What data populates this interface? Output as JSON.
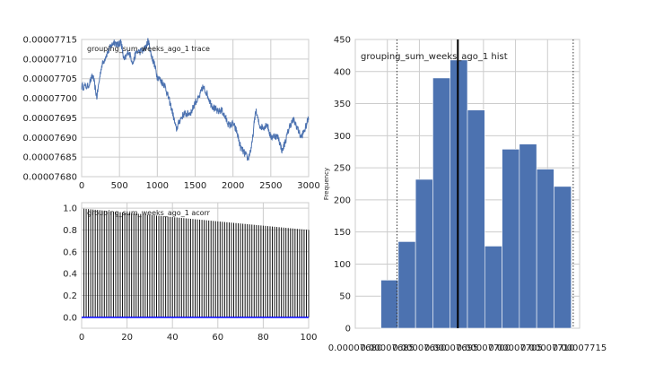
{
  "chart_data": [
    {
      "type": "line",
      "annotation": "grouping_sum_weeks_ago_1 trace",
      "xlim": [
        0,
        3000
      ],
      "ylim": [
        7.68e-05,
        7.715e-05
      ],
      "x_ticks": [
        0,
        500,
        1000,
        1500,
        2000,
        2500,
        3000
      ],
      "x_tick_labels": [
        "0",
        "500",
        "1000",
        "1500",
        "2000",
        "2500",
        "3000"
      ],
      "y_ticks": [
        7.68e-05,
        7.685e-05,
        7.69e-05,
        7.695e-05,
        7.7e-05,
        7.705e-05,
        7.71e-05,
        7.715e-05
      ],
      "y_tick_labels": [
        "0.00007680",
        "0.00007685",
        "0.00007690",
        "0.00007695",
        "0.00007700",
        "0.00007705",
        "0.00007710",
        "0.00007715"
      ],
      "grid": true,
      "color": "#4c72b0",
      "keypoints": [
        [
          0,
          7.703e-05
        ],
        [
          80,
          7.703e-05
        ],
        [
          150,
          7.7058e-05
        ],
        [
          200,
          7.7002e-05
        ],
        [
          260,
          7.708e-05
        ],
        [
          320,
          7.7108e-05
        ],
        [
          380,
          7.713e-05
        ],
        [
          430,
          7.7145e-05
        ],
        [
          480,
          7.7135e-05
        ],
        [
          520,
          7.7145e-05
        ],
        [
          560,
          7.7095e-05
        ],
        [
          620,
          7.712e-05
        ],
        [
          680,
          7.709e-05
        ],
        [
          720,
          7.7118e-05
        ],
        [
          800,
          7.712e-05
        ],
        [
          850,
          7.713e-05
        ],
        [
          880,
          7.7148e-05
        ],
        [
          920,
          7.711e-05
        ],
        [
          960,
          7.7088e-05
        ],
        [
          1000,
          7.7055e-05
        ],
        [
          1050,
          7.7045e-05
        ],
        [
          1100,
          7.7032e-05
        ],
        [
          1150,
          7.7e-05
        ],
        [
          1200,
          7.6965e-05
        ],
        [
          1250,
          7.692e-05
        ],
        [
          1300,
          7.6945e-05
        ],
        [
          1350,
          7.696e-05
        ],
        [
          1400,
          7.696e-05
        ],
        [
          1450,
          7.6965e-05
        ],
        [
          1500,
          7.699e-05
        ],
        [
          1550,
          7.7e-05
        ],
        [
          1600,
          7.7028e-05
        ],
        [
          1650,
          7.7015e-05
        ],
        [
          1700,
          7.699e-05
        ],
        [
          1750,
          7.6975e-05
        ],
        [
          1800,
          7.6965e-05
        ],
        [
          1850,
          7.697e-05
        ],
        [
          1900,
          7.695e-05
        ],
        [
          1950,
          7.693e-05
        ],
        [
          2000,
          7.6935e-05
        ],
        [
          2050,
          7.6915e-05
        ],
        [
          2100,
          7.6875e-05
        ],
        [
          2150,
          7.686e-05
        ],
        [
          2200,
          7.6845e-05
        ],
        [
          2250,
          7.688e-05
        ],
        [
          2300,
          7.697e-05
        ],
        [
          2350,
          7.693e-05
        ],
        [
          2400,
          7.6925e-05
        ],
        [
          2450,
          7.6935e-05
        ],
        [
          2500,
          7.69e-05
        ],
        [
          2550,
          7.6905e-05
        ],
        [
          2600,
          7.69e-05
        ],
        [
          2650,
          7.6865e-05
        ],
        [
          2700,
          7.6895e-05
        ],
        [
          2750,
          7.693e-05
        ],
        [
          2800,
          7.6945e-05
        ],
        [
          2850,
          7.6925e-05
        ],
        [
          2900,
          7.69e-05
        ],
        [
          2950,
          7.692e-05
        ],
        [
          3000,
          7.695e-05
        ]
      ]
    },
    {
      "type": "bar",
      "annotation": "grouping_sum_weeks_ago_1 acorr",
      "xlim": [
        0,
        100
      ],
      "ylim": [
        -0.1,
        1.05
      ],
      "x_ticks": [
        0,
        20,
        40,
        60,
        80,
        100
      ],
      "x_tick_labels": [
        "0",
        "20",
        "40",
        "60",
        "80",
        "100"
      ],
      "y_ticks": [
        0,
        0.2,
        0.4,
        0.6,
        0.8,
        1
      ],
      "y_tick_labels": [
        "0.0",
        "0.2",
        "0.4",
        "0.6",
        "0.8",
        "1.0"
      ],
      "grid": true,
      "lag_range": [
        1,
        100
      ],
      "acorr_start": 0.995,
      "acorr_end": 0.8,
      "baseline": 0,
      "baseline_color": "#0000ff"
    },
    {
      "type": "bar",
      "annotation": "grouping_sum_weeks_ago_1 hist",
      "ylabel": "Frequency",
      "xlim": [
        7.68e-05,
        7.715e-05
      ],
      "ylim": [
        0,
        450
      ],
      "x_ticks": [
        7.68e-05,
        7.685e-05,
        7.69e-05,
        7.695e-05,
        7.7e-05,
        7.705e-05,
        7.71e-05,
        7.715e-05
      ],
      "x_tick_labels": [
        "0.00007680",
        "0.00007685",
        "0.00007690",
        "0.00007695",
        "0.00007700",
        "0.00007705",
        "0.00007710",
        "0.00007715"
      ],
      "y_ticks": [
        0,
        50,
        100,
        150,
        200,
        250,
        300,
        350,
        400,
        450
      ],
      "y_tick_labels": [
        "0",
        "50",
        "100",
        "150",
        "200",
        "250",
        "300",
        "350",
        "400",
        "450"
      ],
      "grid": true,
      "color": "#4c72b0",
      "bin_edges": [
        7.684e-05,
        7.6867e-05,
        7.6894e-05,
        7.6921e-05,
        7.6948e-05,
        7.6975e-05,
        7.7002e-05,
        7.7029e-05,
        7.7056e-05,
        7.7083e-05,
        7.711e-05,
        7.7137e-05
      ],
      "counts": [
        75,
        135,
        232,
        390,
        418,
        340,
        128,
        279,
        287,
        248,
        221,
        248
      ],
      "mean_line": 7.696e-05,
      "interval_lines": [
        7.6865e-05,
        7.714e-05
      ]
    }
  ]
}
